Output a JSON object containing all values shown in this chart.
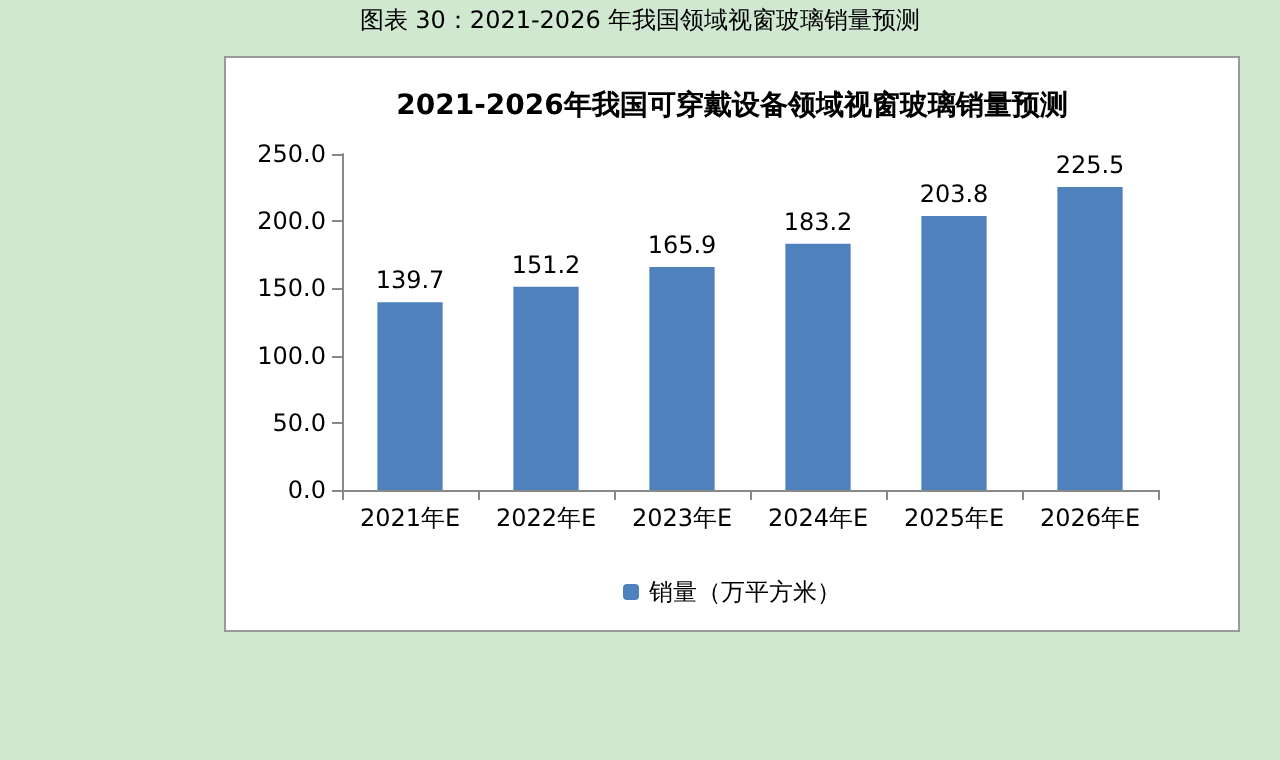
{
  "chart_data": {
    "type": "bar",
    "title": "2021-2026年我国可穿戴设备领域视窗玻璃销量预测",
    "annotations": [
      "图表 30：2021-2026 年我国领域视窗玻璃销量预测"
    ],
    "categories": [
      "2021年E",
      "2022年E",
      "2023年E",
      "2024年E",
      "2025年E",
      "2026年E"
    ],
    "series": [
      {
        "name": "销量（万平方米）",
        "color": "#4f81bd",
        "values": [
          139.7,
          151.2,
          165.9,
          183.2,
          203.8,
          225.5
        ]
      }
    ],
    "ylim": [
      0,
      250
    ],
    "yticks": [
      {
        "value": 0,
        "label": "0.0"
      },
      {
        "value": 50,
        "label": "50.0"
      },
      {
        "value": 100,
        "label": "100.0"
      },
      {
        "value": 150,
        "label": "150.0"
      },
      {
        "value": 200,
        "label": "200.0"
      },
      {
        "value": 250,
        "label": "250.0"
      }
    ],
    "grid": false,
    "legend": "bottom",
    "data_labels": true
  }
}
